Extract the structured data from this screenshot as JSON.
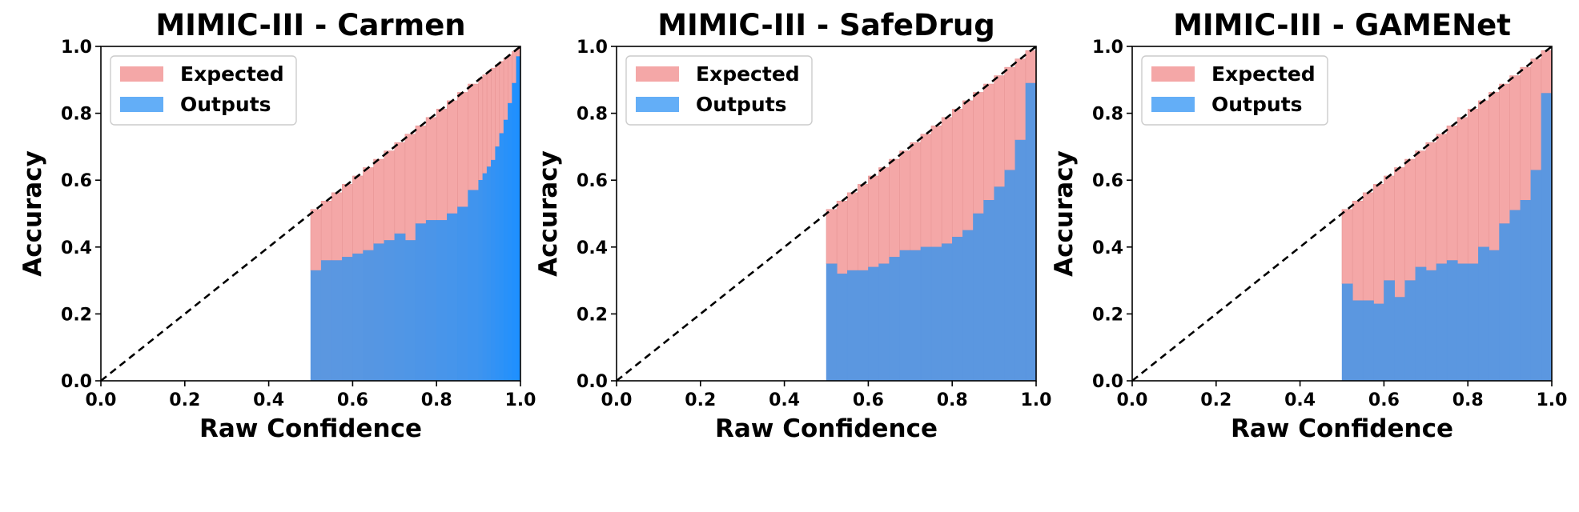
{
  "chart_data": [
    {
      "type": "bar",
      "title": "MIMIC-III - Carmen",
      "xlabel": "Raw Confidence",
      "ylabel": "Accuracy",
      "xlim": [
        0,
        1
      ],
      "ylim": [
        0,
        1
      ],
      "xticks": [
        "0.0",
        "0.2",
        "0.4",
        "0.6",
        "0.8",
        "1.0"
      ],
      "yticks": [
        "0.0",
        "0.2",
        "0.4",
        "0.6",
        "0.8",
        "1.0"
      ],
      "legend": {
        "position": "top-left",
        "entries": [
          "Expected",
          "Outputs"
        ]
      },
      "grid": false,
      "diagonal": true,
      "colors": {
        "expected": "#f4a7a7",
        "outputs_start": "#5b97e0",
        "outputs_end": "#1e90ff",
        "diagonal": "#000000"
      },
      "series": [
        {
          "name": "Outputs",
          "bins": [
            [
              0.5,
              0.525,
              0.33
            ],
            [
              0.525,
              0.55,
              0.36
            ],
            [
              0.55,
              0.575,
              0.36
            ],
            [
              0.575,
              0.6,
              0.37
            ],
            [
              0.6,
              0.625,
              0.38
            ],
            [
              0.625,
              0.65,
              0.39
            ],
            [
              0.65,
              0.675,
              0.41
            ],
            [
              0.675,
              0.7,
              0.42
            ],
            [
              0.7,
              0.725,
              0.44
            ],
            [
              0.725,
              0.75,
              0.42
            ],
            [
              0.75,
              0.775,
              0.47
            ],
            [
              0.775,
              0.8,
              0.48
            ],
            [
              0.8,
              0.825,
              0.48
            ],
            [
              0.825,
              0.85,
              0.5
            ],
            [
              0.85,
              0.875,
              0.52
            ],
            [
              0.875,
              0.9,
              0.57
            ],
            [
              0.9,
              0.91,
              0.6
            ],
            [
              0.91,
              0.92,
              0.62
            ],
            [
              0.92,
              0.93,
              0.64
            ],
            [
              0.93,
              0.94,
              0.66
            ],
            [
              0.94,
              0.95,
              0.7
            ],
            [
              0.95,
              0.96,
              0.74
            ],
            [
              0.96,
              0.97,
              0.78
            ],
            [
              0.97,
              0.98,
              0.83
            ],
            [
              0.98,
              0.99,
              0.89
            ],
            [
              0.99,
              1.0,
              0.97
            ]
          ]
        }
      ]
    },
    {
      "type": "bar",
      "title": "MIMIC-III - SafeDrug",
      "xlabel": "Raw Confidence",
      "ylabel": "Accuracy",
      "xlim": [
        0,
        1
      ],
      "ylim": [
        0,
        1
      ],
      "xticks": [
        "0.0",
        "0.2",
        "0.4",
        "0.6",
        "0.8",
        "1.0"
      ],
      "yticks": [
        "0.0",
        "0.2",
        "0.4",
        "0.6",
        "0.8",
        "1.0"
      ],
      "legend": {
        "position": "top-left",
        "entries": [
          "Expected",
          "Outputs"
        ]
      },
      "grid": false,
      "diagonal": true,
      "colors": {
        "expected": "#f4a7a7",
        "outputs_start": "#5b97e0",
        "outputs_end": "#5b97e0",
        "diagonal": "#000000"
      },
      "series": [
        {
          "name": "Outputs",
          "bins": [
            [
              0.5,
              0.525,
              0.35
            ],
            [
              0.525,
              0.55,
              0.32
            ],
            [
              0.55,
              0.575,
              0.33
            ],
            [
              0.575,
              0.6,
              0.33
            ],
            [
              0.6,
              0.625,
              0.34
            ],
            [
              0.625,
              0.65,
              0.35
            ],
            [
              0.65,
              0.675,
              0.37
            ],
            [
              0.675,
              0.7,
              0.39
            ],
            [
              0.7,
              0.725,
              0.39
            ],
            [
              0.725,
              0.75,
              0.4
            ],
            [
              0.75,
              0.775,
              0.4
            ],
            [
              0.775,
              0.8,
              0.41
            ],
            [
              0.8,
              0.825,
              0.43
            ],
            [
              0.825,
              0.85,
              0.45
            ],
            [
              0.85,
              0.875,
              0.5
            ],
            [
              0.875,
              0.9,
              0.54
            ],
            [
              0.9,
              0.925,
              0.58
            ],
            [
              0.925,
              0.95,
              0.63
            ],
            [
              0.95,
              0.975,
              0.72
            ],
            [
              0.975,
              1.0,
              0.89
            ]
          ]
        }
      ]
    },
    {
      "type": "bar",
      "title": "MIMIC-III - GAMENet",
      "xlabel": "Raw Confidence",
      "ylabel": "Accuracy",
      "xlim": [
        0,
        1
      ],
      "ylim": [
        0,
        1
      ],
      "xticks": [
        "0.0",
        "0.2",
        "0.4",
        "0.6",
        "0.8",
        "1.0"
      ],
      "yticks": [
        "0.0",
        "0.2",
        "0.4",
        "0.6",
        "0.8",
        "1.0"
      ],
      "legend": {
        "position": "top-left",
        "entries": [
          "Expected",
          "Outputs"
        ]
      },
      "grid": false,
      "diagonal": true,
      "colors": {
        "expected": "#f4a7a7",
        "outputs_start": "#5b97e0",
        "outputs_end": "#5b97e0",
        "diagonal": "#000000"
      },
      "series": [
        {
          "name": "Outputs",
          "bins": [
            [
              0.5,
              0.525,
              0.29
            ],
            [
              0.525,
              0.55,
              0.24
            ],
            [
              0.55,
              0.575,
              0.24
            ],
            [
              0.575,
              0.6,
              0.23
            ],
            [
              0.6,
              0.625,
              0.3
            ],
            [
              0.625,
              0.65,
              0.25
            ],
            [
              0.65,
              0.675,
              0.3
            ],
            [
              0.675,
              0.7,
              0.34
            ],
            [
              0.7,
              0.725,
              0.33
            ],
            [
              0.725,
              0.75,
              0.35
            ],
            [
              0.75,
              0.775,
              0.36
            ],
            [
              0.775,
              0.8,
              0.35
            ],
            [
              0.8,
              0.825,
              0.35
            ],
            [
              0.825,
              0.85,
              0.4
            ],
            [
              0.85,
              0.875,
              0.39
            ],
            [
              0.875,
              0.9,
              0.47
            ],
            [
              0.9,
              0.925,
              0.51
            ],
            [
              0.925,
              0.95,
              0.54
            ],
            [
              0.95,
              0.975,
              0.63
            ],
            [
              0.975,
              1.0,
              0.86
            ]
          ]
        }
      ]
    }
  ]
}
